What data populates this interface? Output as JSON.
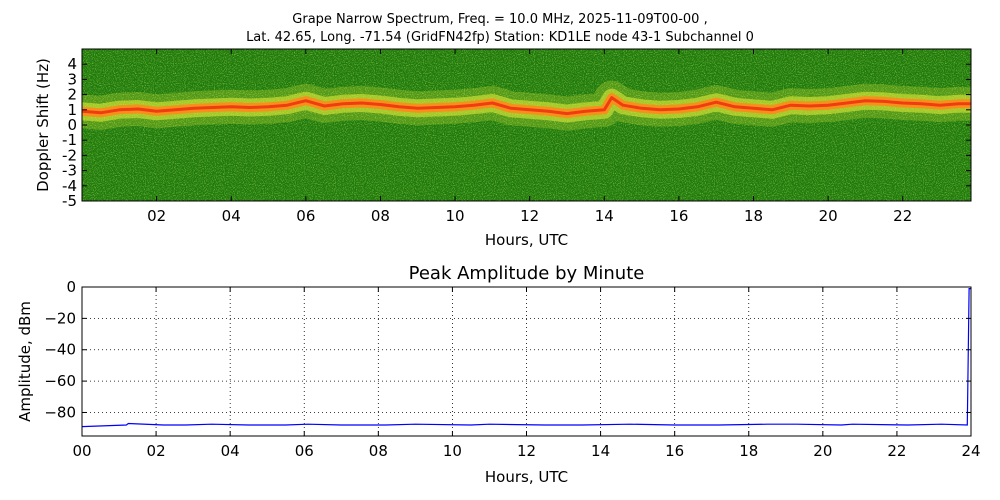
{
  "header": {
    "title_line1": "Grape Narrow Spectrum, Freq. = 10.0 MHz, 2025-11-09T00-00 ,",
    "title_line2": "Lat.  42.65, Long. -71.54 (GridFN42fp) Station: KD1LE node 43-1 Subchannel 0"
  },
  "chart_data": [
    {
      "type": "heatmap",
      "title": "",
      "xlabel": "Hours, UTC",
      "ylabel": "Doppler Shift (Hz)",
      "xlim": [
        0,
        23.83
      ],
      "ylim": [
        -5,
        5
      ],
      "x_ticks": [
        {
          "value": 2,
          "label": "02"
        },
        {
          "value": 4,
          "label": "04"
        },
        {
          "value": 6,
          "label": "06"
        },
        {
          "value": 8,
          "label": "08"
        },
        {
          "value": 10,
          "label": "10"
        },
        {
          "value": 12,
          "label": "12"
        },
        {
          "value": 14,
          "label": "14"
        },
        {
          "value": 16,
          "label": "16"
        },
        {
          "value": 18,
          "label": "18"
        },
        {
          "value": 20,
          "label": "20"
        },
        {
          "value": 22,
          "label": "22"
        }
      ],
      "y_ticks": [
        {
          "value": 4,
          "label": "4"
        },
        {
          "value": 3,
          "label": "3"
        },
        {
          "value": 2,
          "label": "2"
        },
        {
          "value": 1,
          "label": "1"
        },
        {
          "value": 0,
          "label": "0"
        },
        {
          "value": -1,
          "label": "-1"
        },
        {
          "value": -2,
          "label": "-2"
        },
        {
          "value": -3,
          "label": "-3"
        },
        {
          "value": -4,
          "label": "-4"
        },
        {
          "value": -5,
          "label": "-5"
        }
      ],
      "background_color": "#1f7a0c",
      "signal_colors": [
        "#e8ef3a",
        "#ff8a1a",
        "#ee3311"
      ],
      "signal_trace": {
        "x": [
          0,
          0.5,
          1,
          1.5,
          2,
          2.5,
          3,
          3.5,
          4,
          4.5,
          5,
          5.5,
          6,
          6.5,
          7,
          7.5,
          8,
          8.5,
          9,
          9.5,
          10,
          10.5,
          11,
          11.5,
          12,
          12.5,
          13,
          13.5,
          14,
          14.2,
          14.5,
          15,
          15.5,
          16,
          16.5,
          17,
          17.5,
          18,
          18.5,
          19,
          19.5,
          20,
          20.5,
          21,
          21.5,
          22,
          22.5,
          23,
          23.5,
          23.83
        ],
        "y": [
          0.9,
          0.8,
          1.0,
          1.05,
          0.9,
          1.0,
          1.1,
          1.15,
          1.2,
          1.15,
          1.2,
          1.3,
          1.6,
          1.25,
          1.4,
          1.45,
          1.35,
          1.2,
          1.1,
          1.15,
          1.2,
          1.3,
          1.45,
          1.1,
          1.0,
          0.9,
          0.75,
          0.9,
          1.0,
          1.8,
          1.3,
          1.1,
          1.0,
          1.05,
          1.2,
          1.5,
          1.2,
          1.1,
          1.0,
          1.3,
          1.25,
          1.3,
          1.45,
          1.6,
          1.55,
          1.45,
          1.4,
          1.3,
          1.4,
          1.4
        ]
      }
    },
    {
      "type": "line",
      "title": "Peak Amplitude by Minute",
      "xlabel": "Hours, UTC",
      "ylabel": "Amplitude, dBm",
      "xlim": [
        0,
        24
      ],
      "ylim": [
        -95,
        0
      ],
      "grid": true,
      "x_ticks": [
        {
          "value": 0,
          "label": "00"
        },
        {
          "value": 2,
          "label": "02"
        },
        {
          "value": 4,
          "label": "04"
        },
        {
          "value": 6,
          "label": "06"
        },
        {
          "value": 8,
          "label": "08"
        },
        {
          "value": 10,
          "label": "10"
        },
        {
          "value": 12,
          "label": "12"
        },
        {
          "value": 14,
          "label": "14"
        },
        {
          "value": 16,
          "label": "16"
        },
        {
          "value": 18,
          "label": "18"
        },
        {
          "value": 20,
          "label": "20"
        },
        {
          "value": 22,
          "label": "22"
        },
        {
          "value": 24,
          "label": "24"
        }
      ],
      "y_ticks": [
        {
          "value": 0,
          "label": "0"
        },
        {
          "value": -20,
          "label": "−20"
        },
        {
          "value": -40,
          "label": "−40"
        },
        {
          "value": -60,
          "label": "−60"
        },
        {
          "value": -80,
          "label": "−80"
        }
      ],
      "series": [
        {
          "color": "#0000ff",
          "x": [
            0,
            1.2,
            1.25,
            2.2,
            2.8,
            3.5,
            4.5,
            5.5,
            6.1,
            7.0,
            8.2,
            9.0,
            10.5,
            11.0,
            12.5,
            13.5,
            14.8,
            16.0,
            17.2,
            18.5,
            19.3,
            20.5,
            20.8,
            22.3,
            23.2,
            23.9,
            23.95,
            24.0
          ],
          "y": [
            -89,
            -88,
            -87,
            -88,
            -88,
            -87.5,
            -88,
            -88,
            -87.5,
            -88,
            -88,
            -87.5,
            -88,
            -87.5,
            -88,
            -88,
            -87.5,
            -88,
            -88,
            -87.5,
            -87.5,
            -88,
            -87.5,
            -88,
            -87.5,
            -88,
            -1,
            -1
          ]
        }
      ]
    }
  ]
}
